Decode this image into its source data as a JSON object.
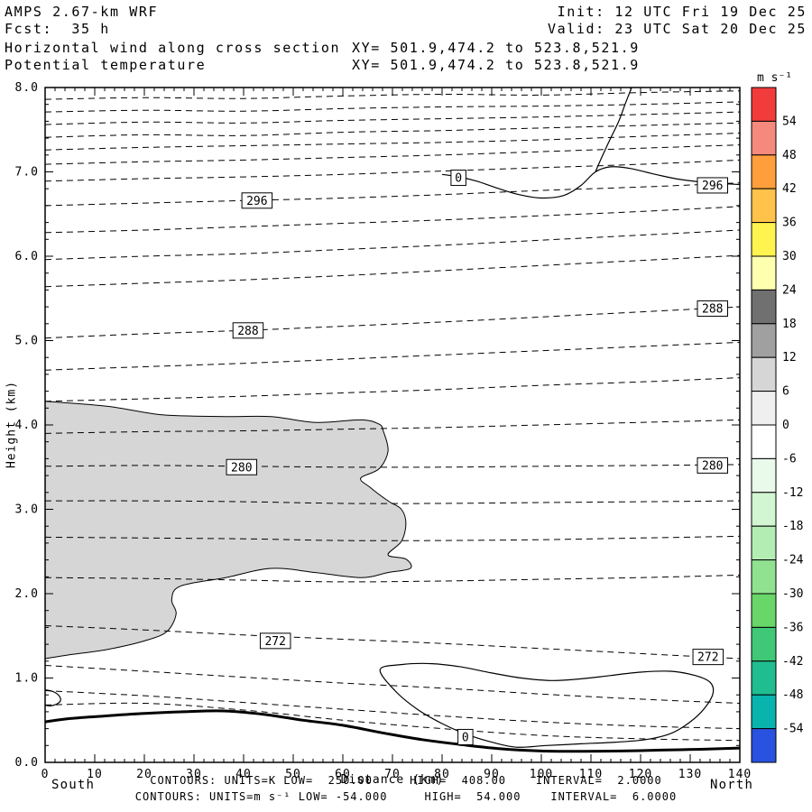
{
  "header": {
    "line1_left": "AMPS 2.67-km WRF",
    "line1_right": "Init: 12 UTC Fri 19 Dec 25",
    "line2_left": "Fcst:  35 h",
    "line2_right": "Valid: 23 UTC Sat 20 Dec 25",
    "line3_left": "Horizontal wind along cross section",
    "line3_right": "XY= 501.9,474.2 to 523.8,521.9",
    "line4_left": "Potential temperature",
    "line4_right": "XY= 501.9,474.2 to 523.8,521.9"
  },
  "footer": {
    "south_label": "South",
    "north_label": "North",
    "contours_line1": "CONTOURS: UNITS=K LOW=  250.00     HIGH=  408.00    INTERVAL=  2.0000",
    "contours_line2": "CONTOURS: UNITS=m s⁻¹ LOW= -54.000     HIGH=  54.000    INTERVAL=  6.0000"
  },
  "chart_data": {
    "type": "contour-cross-section",
    "title": "Horizontal wind along cross section / Potential temperature",
    "xlabel": "Distance (km)",
    "ylabel": "Height (km)",
    "xlim": [
      0,
      140
    ],
    "ylim": [
      0,
      8
    ],
    "x_ticks": [
      0,
      10,
      20,
      30,
      40,
      50,
      60,
      70,
      80,
      90,
      100,
      110,
      120,
      130,
      140
    ],
    "y_ticks": [
      0,
      1,
      2,
      3,
      4,
      5,
      6,
      7,
      8
    ],
    "x_major_step": 10,
    "x_minor_step": 2,
    "y_major_step": 1,
    "y_minor_step": 0.2,
    "theta": {
      "units": "K",
      "low": 250.0,
      "high": 408.0,
      "interval": 2.0,
      "labeled_values": [
        272,
        280,
        288,
        296
      ],
      "line_style": "dashed",
      "xs": [
        0,
        20,
        40,
        60,
        80,
        100,
        120,
        140
      ],
      "lines": [
        [
          7.86,
          7.88,
          7.87,
          7.9,
          7.92,
          7.91,
          7.94,
          7.96
        ],
        [
          7.71,
          7.73,
          7.72,
          7.75,
          7.77,
          7.78,
          7.8,
          7.83
        ],
        [
          7.56,
          7.59,
          7.58,
          7.61,
          7.63,
          7.65,
          7.68,
          7.71
        ],
        [
          7.41,
          7.44,
          7.43,
          7.47,
          7.49,
          7.52,
          7.55,
          7.58
        ],
        [
          7.26,
          7.29,
          7.31,
          7.33,
          7.35,
          7.38,
          7.42,
          7.46
        ],
        [
          7.09,
          7.12,
          7.14,
          7.17,
          7.2,
          7.24,
          7.28,
          7.32
        ],
        [
          6.89,
          6.92,
          6.94,
          6.97,
          7.01,
          7.05,
          7.09,
          7.14
        ],
        [
          6.6,
          6.63,
          6.66,
          6.69,
          6.73,
          6.78,
          6.82,
          6.87
        ],
        [
          6.28,
          6.31,
          6.35,
          6.39,
          6.43,
          6.48,
          6.53,
          6.59
        ],
        [
          5.96,
          6.0,
          6.03,
          6.08,
          6.13,
          6.19,
          6.25,
          6.31
        ],
        [
          5.64,
          5.68,
          5.72,
          5.77,
          5.83,
          5.89,
          5.95,
          6.01
        ],
        [
          5.03,
          5.08,
          5.12,
          5.17,
          5.22,
          5.28,
          5.34,
          5.4
        ],
        [
          4.65,
          4.69,
          4.73,
          4.78,
          4.83,
          4.88,
          4.93,
          4.98
        ],
        [
          4.28,
          4.31,
          4.34,
          4.38,
          4.42,
          4.47,
          4.51,
          4.56
        ],
        [
          3.9,
          3.92,
          3.93,
          3.95,
          3.97,
          4.0,
          4.03,
          4.06
        ],
        [
          3.51,
          3.52,
          3.51,
          3.5,
          3.5,
          3.51,
          3.52,
          3.53
        ],
        [
          3.1,
          3.1,
          3.09,
          3.07,
          3.07,
          3.08,
          3.09,
          3.1
        ],
        [
          2.67,
          2.66,
          2.65,
          2.63,
          2.63,
          2.64,
          2.66,
          2.68
        ],
        [
          2.19,
          2.18,
          2.16,
          2.14,
          2.15,
          2.17,
          2.19,
          2.22
        ],
        [
          1.62,
          1.57,
          1.51,
          1.46,
          1.41,
          1.35,
          1.29,
          1.23
        ],
        [
          1.15,
          1.08,
          1.01,
          0.94,
          0.88,
          0.81,
          0.75,
          0.7
        ],
        [
          0.85,
          0.79,
          0.71,
          0.63,
          0.55,
          0.48,
          0.43,
          0.4
        ],
        [
          0.68,
          0.7,
          0.62,
          0.5,
          0.4,
          0.32,
          0.28,
          0.26
        ]
      ]
    },
    "wind": {
      "units": "m s⁻¹",
      "low": -54.0,
      "high": 54.0,
      "interval": 6.0,
      "shaded_range": [
        6,
        12
      ],
      "shaded_color": "#d6d6d6",
      "shaded_polygon": [
        [
          0,
          4.28
        ],
        [
          12.7,
          4.22
        ],
        [
          23.6,
          4.12
        ],
        [
          36.4,
          4.1
        ],
        [
          45.5,
          4.1
        ],
        [
          54.5,
          4.03
        ],
        [
          63.6,
          4.06
        ],
        [
          67.3,
          4.01
        ],
        [
          68.2,
          3.92
        ],
        [
          69.1,
          3.69
        ],
        [
          67.3,
          3.48
        ],
        [
          63.6,
          3.37
        ],
        [
          65.5,
          3.26
        ],
        [
          69.1,
          3.1
        ],
        [
          71.8,
          3.0
        ],
        [
          72.7,
          2.83
        ],
        [
          71.8,
          2.62
        ],
        [
          69.1,
          2.46
        ],
        [
          72.7,
          2.41
        ],
        [
          73.6,
          2.3
        ],
        [
          69.1,
          2.25
        ],
        [
          63.6,
          2.19
        ],
        [
          54.5,
          2.25
        ],
        [
          45.5,
          2.3
        ],
        [
          36.4,
          2.19
        ],
        [
          27.3,
          2.09
        ],
        [
          25.5,
          1.93
        ],
        [
          26.4,
          1.76
        ],
        [
          24.5,
          1.55
        ],
        [
          20.0,
          1.44
        ],
        [
          12.7,
          1.34
        ],
        [
          5.5,
          1.28
        ],
        [
          0,
          1.23
        ]
      ],
      "contours": [
        {
          "closed": false,
          "pts": [
            [
              118.2,
              8.0
            ],
            [
              117.0,
              7.82
            ],
            [
              115.6,
              7.6
            ],
            [
              113.8,
              7.38
            ],
            [
              112.0,
              7.15
            ],
            [
              110.9,
              7.0
            ]
          ]
        },
        {
          "closed": false,
          "pts": [
            [
              80.0,
              6.97
            ],
            [
              83.5,
              6.94
            ],
            [
              87.0,
              6.89
            ],
            [
              91.0,
              6.81
            ],
            [
              95.5,
              6.73
            ],
            [
              100.0,
              6.69
            ],
            [
              104.5,
              6.72
            ],
            [
              108.0,
              6.84
            ],
            [
              110.9,
              7.0
            ],
            [
              114.0,
              7.06
            ],
            [
              118.0,
              7.04
            ],
            [
              123.0,
              6.97
            ],
            [
              128.0,
              6.91
            ],
            [
              134.0,
              6.87
            ],
            [
              140.0,
              6.85
            ]
          ]
        },
        {
          "closed": true,
          "pts": [
            [
              67.5,
              1.1
            ],
            [
              72,
              1.16
            ],
            [
              78,
              1.17
            ],
            [
              84,
              1.13
            ],
            [
              90,
              1.06
            ],
            [
              96,
              1.0
            ],
            [
              102,
              0.97
            ],
            [
              108,
              0.99
            ],
            [
              114,
              1.03
            ],
            [
              120,
              1.07
            ],
            [
              126,
              1.08
            ],
            [
              131,
              1.03
            ],
            [
              134,
              0.95
            ],
            [
              134.6,
              0.82
            ],
            [
              133,
              0.65
            ],
            [
              130,
              0.48
            ],
            [
              126,
              0.34
            ],
            [
              121,
              0.27
            ],
            [
              115,
              0.24
            ],
            [
              108,
              0.22
            ],
            [
              101,
              0.2
            ],
            [
              95,
              0.18
            ],
            [
              90,
              0.24
            ],
            [
              85,
              0.33
            ],
            [
              80,
              0.46
            ],
            [
              75,
              0.63
            ],
            [
              70.5,
              0.85
            ]
          ]
        },
        {
          "closed": false,
          "pts": [
            [
              0,
              0.86
            ],
            [
              1.6,
              0.84
            ],
            [
              2.8,
              0.79
            ],
            [
              3.1,
              0.73
            ],
            [
              2.3,
              0.69
            ],
            [
              1.0,
              0.67
            ],
            [
              0,
              0.68
            ]
          ]
        }
      ]
    },
    "terrain": [
      [
        0,
        0.48
      ],
      [
        5,
        0.52
      ],
      [
        12,
        0.55
      ],
      [
        20,
        0.58
      ],
      [
        28,
        0.6
      ],
      [
        36,
        0.61
      ],
      [
        44,
        0.57
      ],
      [
        52,
        0.5
      ],
      [
        60,
        0.44
      ],
      [
        68,
        0.35
      ],
      [
        76,
        0.27
      ],
      [
        84,
        0.21
      ],
      [
        92,
        0.16
      ],
      [
        100,
        0.135
      ],
      [
        108,
        0.13
      ],
      [
        116,
        0.135
      ],
      [
        124,
        0.145
      ],
      [
        132,
        0.155
      ],
      [
        140,
        0.17
      ]
    ],
    "contour_labels": [
      {
        "text": "296",
        "x": 42.7,
        "h": 6.66
      },
      {
        "text": "296",
        "x": 134.5,
        "h": 6.84
      },
      {
        "text": "288",
        "x": 40.9,
        "h": 5.12
      },
      {
        "text": "288",
        "x": 134.5,
        "h": 5.38
      },
      {
        "text": "280",
        "x": 39.6,
        "h": 3.5
      },
      {
        "text": "280",
        "x": 134.5,
        "h": 3.52
      },
      {
        "text": "272",
        "x": 46.4,
        "h": 1.44
      },
      {
        "text": "272",
        "x": 133.6,
        "h": 1.25
      },
      {
        "text": "0",
        "x": 83.3,
        "h": 6.93
      },
      {
        "text": "0",
        "x": 84.7,
        "h": 0.3
      }
    ],
    "colorbar": {
      "title": "m s⁻¹",
      "labels": [
        "54",
        "48",
        "42",
        "36",
        "30",
        "24",
        "18",
        "12",
        "6",
        "0",
        "-6",
        "-12",
        "-18",
        "-24",
        "-30",
        "-36",
        "-42",
        "-48",
        "-54"
      ],
      "colors": [
        "#f23c3c",
        "#f5897d",
        "#ff9e3c",
        "#ffc34b",
        "#fff350",
        "#ffffb0",
        "#707070",
        "#a0a0a0",
        "#d6d6d6",
        "#efefef",
        "#ffffff",
        "#eafaea",
        "#d2f5d2",
        "#b4edb4",
        "#90e290",
        "#68d668",
        "#40c878",
        "#20bd90",
        "#0ab4ae",
        "#2a52e0"
      ]
    }
  }
}
